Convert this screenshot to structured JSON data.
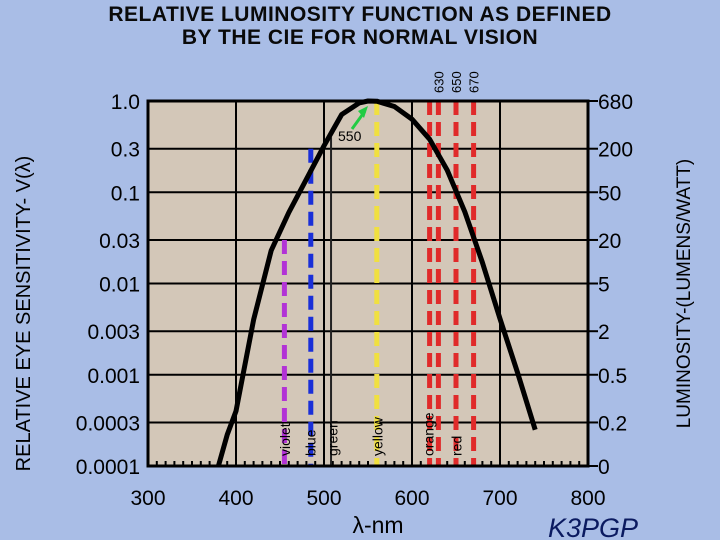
{
  "title_line1": "RELATIVE LUMINOSITY FUNCTION AS DEFINED",
  "title_line2": "BY THE CIE FOR NORMAL VISION",
  "credit": "K3PGP",
  "chart_data": {
    "type": "line",
    "title": "RELATIVE LUMINOSITY FUNCTION AS DEFINED BY THE CIE FOR NORMAL VISION",
    "xlabel": "λ-nm",
    "ylabel": "RELATIVE EYE SENSITIVITY- V(λ)",
    "y2label": "LUMINOSITY-(LUMENS/WATT)",
    "xlim": [
      300,
      800
    ],
    "ylim": [
      0.0001,
      1.0
    ],
    "yscale": "log",
    "grid": true,
    "x_ticks": [
      "300",
      "400",
      "500",
      "600",
      "700",
      "800"
    ],
    "y_ticks": [
      "1.0",
      "0.3",
      "0.1",
      "0.03",
      "0.01",
      "0.003",
      "0.001",
      "0.0003",
      "0.0001"
    ],
    "y2_ticks": [
      "680",
      "200",
      "50",
      "20",
      "5",
      "2",
      "0.5",
      "0.2",
      "0"
    ],
    "curve": {
      "color": "#000000",
      "x": [
        380,
        390,
        400,
        420,
        440,
        460,
        480,
        500,
        520,
        540,
        550,
        560,
        580,
        600,
        620,
        640,
        660,
        680,
        700,
        720,
        740
      ],
      "y": [
        0.0001,
        0.00022,
        0.0004,
        0.004,
        0.023,
        0.06,
        0.139,
        0.323,
        0.71,
        0.954,
        1.0,
        0.995,
        0.87,
        0.631,
        0.381,
        0.175,
        0.061,
        0.017,
        0.0041,
        0.00105,
        0.00025
      ]
    },
    "peak_annotation": {
      "x": 550,
      "label": "550",
      "arrow_color": "#22cc44"
    },
    "color_lines": [
      {
        "name": "violet",
        "x": 455,
        "y_top": 0.03,
        "color": "#b233d6"
      },
      {
        "name": "blue",
        "x": 485,
        "y_top": 0.3,
        "color": "#1a2fd8"
      },
      {
        "name": "green",
        "x": 508,
        "y_top": null,
        "color": "#222222"
      },
      {
        "name": "yellow",
        "x": 560,
        "y_top": 1.0,
        "color": "#f0e040"
      },
      {
        "name": "orange",
        "x": 620,
        "y_top": 1.0,
        "color": "#e02a2a"
      },
      {
        "name": "",
        "x": 630,
        "y_top": 1.0,
        "color": "#e02a2a",
        "top_label": "630"
      },
      {
        "name": "red",
        "x": 650,
        "y_top": 1.0,
        "color": "#e02a2a",
        "top_label": "650"
      },
      {
        "name": "",
        "x": 670,
        "y_top": 1.0,
        "color": "#e02a2a",
        "top_label": "670"
      }
    ],
    "band_labels": [
      "violet",
      "blue",
      "green",
      "yellow",
      "orange",
      "red"
    ],
    "colors": {
      "plot_bg": "#d3c7b8",
      "page_bg": "#a9bde6",
      "grid": "#000000"
    }
  }
}
